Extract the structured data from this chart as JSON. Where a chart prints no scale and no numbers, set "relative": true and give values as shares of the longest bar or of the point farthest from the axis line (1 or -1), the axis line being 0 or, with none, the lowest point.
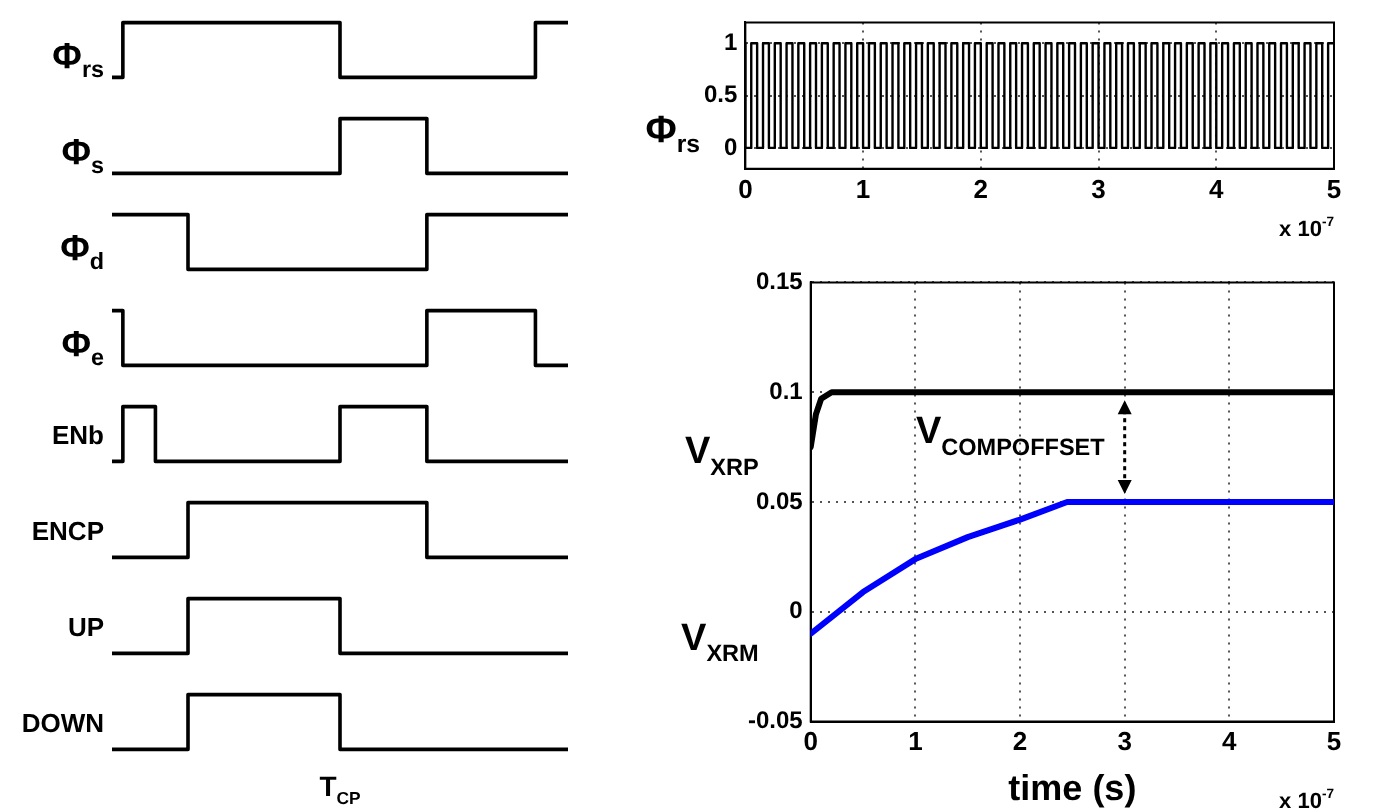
{
  "chart_data": [
    {
      "type": "step",
      "ylabel": "Φ$_{rs}$",
      "relative": true,
      "color": "#000000",
      "categories": [
        null,
        null,
        null,
        null,
        null,
        null,
        null,
        null,
        null,
        null,
        null,
        null,
        null,
        null,
        null,
        null,
        null,
        null,
        null,
        null,
        null,
        null,
        null,
        null,
        null,
        null,
        null,
        null,
        null,
        null,
        null,
        null,
        null,
        null,
        null,
        null,
        null,
        null,
        null,
        null,
        null,
        null,
        null
      ],
      "values": [
        0,
        0,
        1,
        1,
        1,
        1,
        1,
        1,
        1,
        1,
        1,
        1,
        1,
        1,
        1,
        1,
        1,
        1,
        1,
        1,
        1,
        1,
        0,
        0,
        0,
        0,
        0,
        0,
        0,
        0,
        0,
        0,
        0,
        0,
        0,
        0,
        0,
        0,
        0,
        0,
        1,
        1,
        1
      ]
    },
    {
      "type": "step",
      "ylabel": "Φ$_{s}$",
      "relative": true,
      "color": "#000000",
      "categories": [
        null,
        null,
        null,
        null,
        null,
        null,
        null,
        null,
        null,
        null,
        null,
        null,
        null,
        null,
        null,
        null,
        null,
        null,
        null,
        null,
        null,
        null,
        null,
        null,
        null,
        null,
        null,
        null,
        null,
        null,
        null,
        null,
        null,
        null,
        null,
        null,
        null,
        null,
        null,
        null,
        null,
        null,
        null
      ],
      "values": [
        0,
        0,
        0,
        0,
        0,
        0,
        0,
        0,
        0,
        0,
        0,
        0,
        0,
        0,
        0,
        0,
        0,
        0,
        0,
        0,
        0,
        0,
        1,
        1,
        1,
        1,
        1,
        1,
        1,
        1,
        0,
        0,
        0,
        0,
        0,
        0,
        0,
        0,
        0,
        0,
        0,
        0,
        0
      ]
    },
    {
      "type": "step",
      "ylabel": "Φ$_{d}$",
      "relative": true,
      "color": "#000000",
      "categories": [
        null,
        null,
        null,
        null,
        null,
        null,
        null,
        null,
        null,
        null,
        null,
        null,
        null,
        null,
        null,
        null,
        null,
        null,
        null,
        null,
        null,
        null,
        null,
        null,
        null,
        null,
        null,
        null,
        null,
        null,
        null,
        null,
        null,
        null,
        null,
        null,
        null,
        null,
        null,
        null,
        null,
        null,
        null
      ],
      "values": [
        1,
        1,
        1,
        1,
        1,
        1,
        1,
        1,
        0,
        0,
        0,
        0,
        0,
        0,
        0,
        0,
        0,
        0,
        0,
        0,
        0,
        0,
        0,
        0,
        0,
        0,
        0,
        0,
        0,
        0,
        1,
        1,
        1,
        1,
        1,
        1,
        1,
        1,
        1,
        1,
        1,
        1,
        1
      ]
    },
    {
      "type": "step",
      "ylabel": "Φ$_{e}$",
      "relative": true,
      "color": "#000000",
      "categories": [
        null,
        null,
        null,
        null,
        null,
        null,
        null,
        null,
        null,
        null,
        null,
        null,
        null,
        null,
        null,
        null,
        null,
        null,
        null,
        null,
        null,
        null,
        null,
        null,
        null,
        null,
        null,
        null,
        null,
        null,
        null,
        null,
        null,
        null,
        null,
        null,
        null,
        null,
        null,
        null,
        null,
        null,
        null
      ],
      "values": [
        1,
        1,
        0,
        0,
        0,
        0,
        0,
        0,
        0,
        0,
        0,
        0,
        0,
        0,
        0,
        0,
        0,
        0,
        0,
        0,
        0,
        0,
        0,
        0,
        0,
        0,
        0,
        0,
        0,
        0,
        1,
        1,
        1,
        1,
        1,
        1,
        1,
        1,
        1,
        1,
        0,
        0,
        0
      ]
    },
    {
      "type": "step",
      "ylabel": "ENb",
      "relative": true,
      "color": "#000000",
      "categories": [
        null,
        null,
        null,
        null,
        null,
        null,
        null,
        null,
        null,
        null,
        null,
        null,
        null,
        null,
        null,
        null,
        null,
        null,
        null,
        null,
        null,
        null,
        null,
        null,
        null,
        null,
        null,
        null,
        null,
        null,
        null,
        null,
        null,
        null,
        null,
        null,
        null,
        null,
        null,
        null,
        null,
        null,
        null
      ],
      "values": [
        0,
        0,
        1,
        1,
        1,
        0,
        0,
        0,
        0,
        0,
        0,
        0,
        0,
        0,
        0,
        0,
        0,
        0,
        0,
        0,
        0,
        0,
        1,
        1,
        1,
        1,
        1,
        1,
        1,
        1,
        0,
        0,
        0,
        0,
        0,
        0,
        0,
        0,
        0,
        0,
        0,
        0,
        0
      ]
    },
    {
      "type": "step",
      "ylabel": "ENCP",
      "relative": true,
      "color": "#000000",
      "categories": [
        null,
        null,
        null,
        null,
        null,
        null,
        null,
        null,
        null,
        null,
        null,
        null,
        null,
        null,
        null,
        null,
        null,
        null,
        null,
        null,
        null,
        null,
        null,
        null,
        null,
        null,
        null,
        null,
        null,
        null,
        null,
        null,
        null,
        null,
        null,
        null,
        null,
        null,
        null,
        null,
        null,
        null,
        null
      ],
      "values": [
        0,
        0,
        0,
        0,
        0,
        0,
        0,
        0,
        1,
        1,
        1,
        1,
        1,
        1,
        1,
        1,
        1,
        1,
        1,
        1,
        1,
        1,
        1,
        1,
        1,
        1,
        1,
        1,
        1,
        1,
        0,
        0,
        0,
        0,
        0,
        0,
        0,
        0,
        0,
        0,
        0,
        0,
        0
      ]
    },
    {
      "type": "step",
      "ylabel": "UP",
      "relative": true,
      "color": "#000000",
      "categories": [
        null,
        null,
        null,
        null,
        null,
        null,
        null,
        null,
        null,
        null,
        null,
        null,
        null,
        null,
        null,
        null,
        null,
        null,
        null,
        null,
        null,
        null,
        null,
        null,
        null,
        null,
        null,
        null,
        null,
        null,
        null,
        null,
        null,
        null,
        null,
        null,
        null,
        null,
        null,
        null,
        null,
        null,
        null
      ],
      "values": [
        0,
        0,
        0,
        0,
        0,
        0,
        0,
        0,
        1,
        1,
        1,
        1,
        1,
        1,
        1,
        1,
        1,
        1,
        1,
        1,
        1,
        1,
        0,
        0,
        0,
        0,
        0,
        0,
        0,
        0,
        0,
        0,
        0,
        0,
        0,
        0,
        0,
        0,
        0,
        0,
        0,
        0,
        0
      ]
    },
    {
      "type": "step",
      "ylabel": "DOWN",
      "relative": true,
      "color": "#000000",
      "annotations": [
        "T$_{CP}$"
      ],
      "categories": [
        null,
        null,
        null,
        null,
        null,
        null,
        null,
        null,
        null,
        null,
        null,
        null,
        null,
        null,
        null,
        null,
        null,
        null,
        null,
        null,
        null,
        null,
        null,
        null,
        null,
        null,
        null,
        null,
        null,
        null,
        null,
        null,
        null,
        null,
        null,
        null,
        null,
        null,
        null,
        null,
        null,
        null,
        null
      ],
      "values": [
        0,
        0,
        0,
        0,
        0,
        0,
        0,
        0,
        1,
        1,
        1,
        1,
        1,
        1,
        1,
        1,
        1,
        1,
        1,
        1,
        1,
        1,
        0,
        0,
        0,
        0,
        0,
        0,
        0,
        0,
        0,
        0,
        0,
        0,
        0,
        0,
        0,
        0,
        0,
        0,
        0,
        0,
        0
      ]
    },
    {
      "type": "step",
      "ylabel": "Φ$_{rs}$",
      "color": "#000000",
      "xlim": [
        0,
        5
      ],
      "xticks": [
        0,
        1,
        2,
        3,
        4,
        5
      ],
      "ylim": [
        -0.2,
        1.2
      ],
      "yticks": [
        0,
        0.5,
        1
      ],
      "grid": true,
      "annotations": [
        "x 10$^{-7}$"
      ],
      "x": [
        0,
        0.05,
        0.1,
        0.15,
        0.2,
        0.25,
        0.3,
        0.35,
        0.4,
        0.45,
        0.5,
        0.55,
        0.6,
        0.65,
        0.7,
        0.75,
        0.8,
        0.85,
        0.9,
        0.95,
        1,
        1.05,
        1.1,
        1.15,
        1.2,
        1.25,
        1.3,
        1.35,
        1.4,
        1.45,
        1.5,
        1.55,
        1.6,
        1.65,
        1.7,
        1.75,
        1.8,
        1.85,
        1.9,
        1.95,
        2,
        2.05,
        2.1,
        2.15,
        2.2,
        2.25,
        2.3,
        2.35,
        2.4,
        2.45,
        2.5,
        2.55,
        2.6,
        2.65,
        2.7,
        2.75,
        2.8,
        2.85,
        2.9,
        2.95,
        3,
        3.05,
        3.1,
        3.15,
        3.2,
        3.25,
        3.3,
        3.35,
        3.4,
        3.45,
        3.5,
        3.55,
        3.6,
        3.65,
        3.7,
        3.75,
        3.8,
        3.85,
        3.9,
        3.95,
        4,
        4.05,
        4.1,
        4.15,
        4.2,
        4.25,
        4.3,
        4.35,
        4.4,
        4.45,
        4.5,
        4.55,
        4.6,
        4.65,
        4.7,
        4.75,
        4.8,
        4.85,
        4.9,
        4.95,
        5
      ],
      "values": [
        1,
        0,
        1,
        0,
        1,
        0,
        1,
        0,
        1,
        0,
        1,
        0,
        1,
        0,
        1,
        0,
        1,
        0,
        1,
        0,
        1,
        0,
        1,
        0,
        1,
        0,
        1,
        0,
        1,
        0,
        1,
        0,
        1,
        0,
        1,
        0,
        1,
        0,
        1,
        0,
        1,
        0,
        1,
        0,
        1,
        0,
        1,
        0,
        1,
        0,
        1,
        0,
        1,
        0,
        1,
        0,
        1,
        0,
        1,
        0,
        1,
        0,
        1,
        0,
        1,
        0,
        1,
        0,
        1,
        0,
        1,
        0,
        1,
        0,
        1,
        0,
        1,
        0,
        1,
        0,
        1,
        0,
        1,
        0,
        1,
        0,
        1,
        0,
        1,
        0,
        1,
        0,
        1,
        0,
        1,
        0,
        1,
        0,
        1,
        0,
        1
      ]
    },
    {
      "type": "line",
      "xlabel": "time (s)",
      "xlim": [
        0,
        5
      ],
      "xticks": [
        0,
        1,
        2,
        3,
        4,
        5
      ],
      "ylim": [
        -0.05,
        0.15
      ],
      "yticks": [
        -0.05,
        0,
        0.05,
        0.1,
        0.15
      ],
      "grid": true,
      "annotations": [
        {
          "text": "V$_{COMPOFFSET}$",
          "x": 3,
          "y": 0.1
        },
        "x 10$^{-7}$"
      ],
      "series": [
        {
          "name": "V$_{XRP}$",
          "color": "#000000",
          "x": [
            0,
            0.05,
            0.1,
            0.2,
            0.5,
            1,
            2,
            3,
            4,
            5
          ],
          "values": [
            0.075,
            0.09,
            0.097,
            0.1,
            0.1,
            0.1,
            0.1,
            0.1,
            0.1,
            0.1
          ]
        },
        {
          "name": "V$_{XRM}$",
          "color": "#0000ff",
          "x": [
            0,
            0.5,
            1,
            1.5,
            2,
            2.45,
            3,
            4,
            5
          ],
          "values": [
            -0.01,
            0.009,
            0.024,
            0.034,
            0.042,
            0.05,
            0.05,
            0.05,
            0.05
          ]
        }
      ]
    }
  ]
}
